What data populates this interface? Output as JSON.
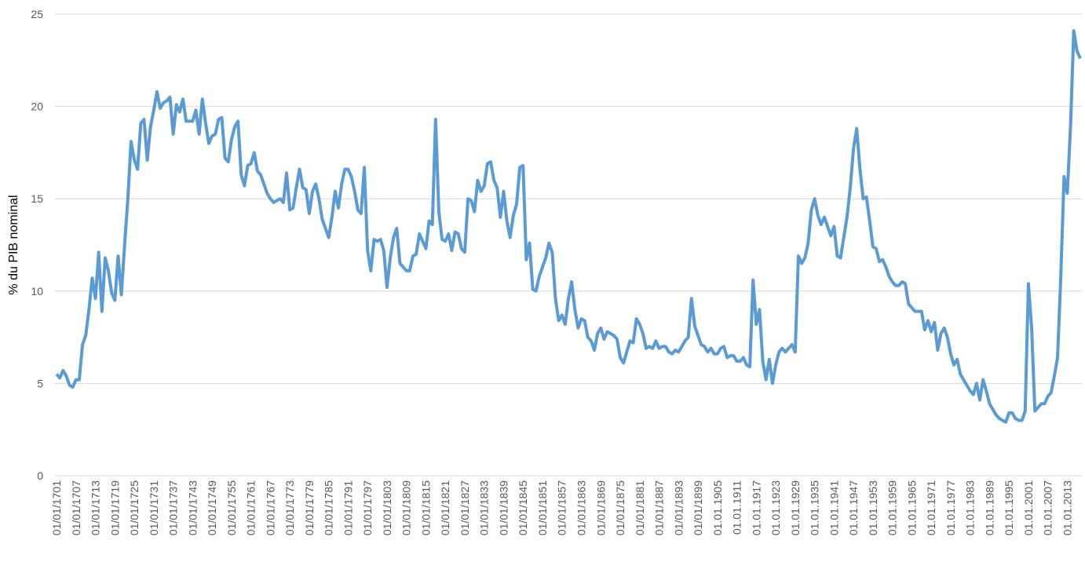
{
  "chart_data": {
    "type": "line",
    "y_label": "% du PIB nominal",
    "ylim": [
      0,
      25
    ],
    "yticks": [
      0,
      5,
      10,
      15,
      20,
      25
    ],
    "grid": true,
    "categories": [
      "01/01/1701",
      null,
      null,
      null,
      null,
      null,
      "01/01/1707",
      null,
      null,
      null,
      null,
      null,
      "01/01/1713",
      null,
      null,
      null,
      null,
      null,
      "01/01/1719",
      null,
      null,
      null,
      null,
      null,
      "01/01/1725",
      null,
      null,
      null,
      null,
      null,
      "01/01/1731",
      null,
      null,
      null,
      null,
      null,
      "01/01/1737",
      null,
      null,
      null,
      null,
      null,
      "01/01/1743",
      null,
      null,
      null,
      null,
      null,
      "01/01/1749",
      null,
      null,
      null,
      null,
      null,
      "01/01/1755",
      null,
      null,
      null,
      null,
      null,
      "01/01/1761",
      null,
      null,
      null,
      null,
      null,
      "01/01/1767",
      null,
      null,
      null,
      null,
      null,
      "01/01/1773",
      null,
      null,
      null,
      null,
      null,
      "01/01/1779",
      null,
      null,
      null,
      null,
      null,
      "01/01/1785",
      null,
      null,
      null,
      null,
      null,
      "01/01/1791",
      null,
      null,
      null,
      null,
      null,
      "01/01/1797",
      null,
      null,
      null,
      null,
      null,
      "01/01/1803",
      null,
      null,
      null,
      null,
      null,
      "01/01/1809",
      null,
      null,
      null,
      null,
      null,
      "01/01/1815",
      null,
      null,
      null,
      null,
      null,
      "01/01/1821",
      null,
      null,
      null,
      null,
      null,
      "01/01/1827",
      null,
      null,
      null,
      null,
      null,
      "01/01/1833",
      null,
      null,
      null,
      null,
      null,
      "01/01/1839",
      null,
      null,
      null,
      null,
      null,
      "01/01/1845",
      null,
      null,
      null,
      null,
      null,
      "01/01/1851",
      null,
      null,
      null,
      null,
      null,
      "01/01/1857",
      null,
      null,
      null,
      null,
      null,
      "01/01/1863",
      null,
      null,
      null,
      null,
      null,
      "01/01/1869",
      null,
      null,
      null,
      null,
      null,
      "01/01/1875",
      null,
      null,
      null,
      null,
      null,
      "01/01/1881",
      null,
      null,
      null,
      null,
      null,
      "01/01/1887",
      null,
      null,
      null,
      null,
      null,
      "01/01/1893",
      null,
      null,
      null,
      null,
      null,
      "01/01/1899",
      null,
      null,
      null,
      null,
      null,
      "01.01.1905",
      null,
      null,
      null,
      null,
      null,
      "01.01.1911",
      null,
      null,
      null,
      null,
      null,
      "01.01.1917",
      null,
      null,
      null,
      null,
      null,
      "01.01.1923",
      null,
      null,
      null,
      null,
      null,
      "01.01.1929",
      null,
      null,
      null,
      null,
      null,
      "01.01.1935",
      null,
      null,
      null,
      null,
      null,
      "01.01.1941",
      null,
      null,
      null,
      null,
      null,
      "01.01.1947",
      null,
      null,
      null,
      null,
      null,
      "01.01.1953",
      null,
      null,
      null,
      null,
      null,
      "01.01.1959",
      null,
      null,
      null,
      null,
      null,
      "01.01.1965",
      null,
      null,
      null,
      null,
      null,
      "01.01.1971",
      null,
      null,
      null,
      null,
      null,
      "01.01.1977",
      null,
      null,
      null,
      null,
      null,
      "01.01.1983",
      null,
      null,
      null,
      null,
      null,
      "01.01.1989",
      null,
      null,
      null,
      null,
      null,
      "01.01.1995",
      null,
      null,
      null,
      null,
      null,
      "01.01.2001",
      null,
      null,
      null,
      null,
      null,
      "01.01.2007",
      null,
      null,
      null,
      null,
      null,
      "01.01.2013",
      null,
      null,
      null,
      null
    ],
    "series": [
      {
        "color": "#5b9bd5",
        "values": [
          5.5,
          5.3,
          5.7,
          5.4,
          4.9,
          4.8,
          5.2,
          5.2,
          7.1,
          7.6,
          9.0,
          10.7,
          9.6,
          12.1,
          8.9,
          11.8,
          11.1,
          9.9,
          9.5,
          11.9,
          9.8,
          12.5,
          15.0,
          18.1,
          17.1,
          16.6,
          19.1,
          19.3,
          17.1,
          18.9,
          19.8,
          20.8,
          19.9,
          20.2,
          20.3,
          20.5,
          18.5,
          20.1,
          19.7,
          20.4,
          19.2,
          19.2,
          19.2,
          19.8,
          18.5,
          20.4,
          19.1,
          18.0,
          18.4,
          18.5,
          19.3,
          19.4,
          17.2,
          17.0,
          18.2,
          18.9,
          19.2,
          16.3,
          15.7,
          16.8,
          16.9,
          17.5,
          16.5,
          16.3,
          15.8,
          15.3,
          15.0,
          14.8,
          14.9,
          15.0,
          14.8,
          16.4,
          14.4,
          14.5,
          15.6,
          16.6,
          15.6,
          15.5,
          14.2,
          15.4,
          15.8,
          15.0,
          13.9,
          13.4,
          12.9,
          14.0,
          15.4,
          14.5,
          15.8,
          16.6,
          16.6,
          16.2,
          15.4,
          14.4,
          14.2,
          16.7,
          12.2,
          11.1,
          12.8,
          12.7,
          12.8,
          12.2,
          10.2,
          11.8,
          12.9,
          13.4,
          11.5,
          11.3,
          11.1,
          11.1,
          11.9,
          12.0,
          13.1,
          12.7,
          12.3,
          13.8,
          13.6,
          19.3,
          14.3,
          12.8,
          12.7,
          13.1,
          12.2,
          13.2,
          13.1,
          12.3,
          12.1,
          15.0,
          14.9,
          14.3,
          16.0,
          15.4,
          15.7,
          16.9,
          17.0,
          16.0,
          15.6,
          14.0,
          15.4,
          13.8,
          12.9,
          14.1,
          14.7,
          16.7,
          16.8,
          11.7,
          12.6,
          10.1,
          10.0,
          10.8,
          11.3,
          11.8,
          12.6,
          12.1,
          9.6,
          8.4,
          8.7,
          8.2,
          9.6,
          10.5,
          9.0,
          8.0,
          8.5,
          8.4,
          7.5,
          7.3,
          6.8,
          7.7,
          8.0,
          7.4,
          7.8,
          7.7,
          7.6,
          7.4,
          6.4,
          6.1,
          6.7,
          7.3,
          7.2,
          8.5,
          8.2,
          7.7,
          6.9,
          7.0,
          6.9,
          7.3,
          6.9,
          7.0,
          7.0,
          6.7,
          6.6,
          6.8,
          6.7,
          7.0,
          7.3,
          7.5,
          9.6,
          8.1,
          7.6,
          7.1,
          7.0,
          6.7,
          6.9,
          6.6,
          6.6,
          6.9,
          7.0,
          6.4,
          6.5,
          6.5,
          6.2,
          6.2,
          6.4,
          6.0,
          5.9,
          10.6,
          8.2,
          9.0,
          6.2,
          5.2,
          6.3,
          5.0,
          6.0,
          6.7,
          6.9,
          6.7,
          6.9,
          7.1,
          6.7,
          11.9,
          11.5,
          11.8,
          12.6,
          14.4,
          15.0,
          14.1,
          13.6,
          14.0,
          13.5,
          13.0,
          13.5,
          11.9,
          11.8,
          12.9,
          14.0,
          15.6,
          17.7,
          18.8,
          16.6,
          15.0,
          15.1,
          13.8,
          12.4,
          12.3,
          11.6,
          11.7,
          11.3,
          10.8,
          10.5,
          10.3,
          10.3,
          10.5,
          10.4,
          9.3,
          9.1,
          8.9,
          8.9,
          8.9,
          7.9,
          8.4,
          7.8,
          8.3,
          6.8,
          7.7,
          8.0,
          7.5,
          6.6,
          6.0,
          6.3,
          5.5,
          5.2,
          4.9,
          4.6,
          4.4,
          5.0,
          4.1,
          5.2,
          4.6,
          3.9,
          3.6,
          3.3,
          3.1,
          3.0,
          2.9,
          3.4,
          3.4,
          3.1,
          3.0,
          3.0,
          3.5,
          10.4,
          8.0,
          3.5,
          3.7,
          3.9,
          3.9,
          4.3,
          4.5,
          5.4,
          6.4,
          10.8,
          16.2,
          15.3,
          18.9,
          24.1,
          23.0,
          22.6
        ]
      }
    ]
  }
}
